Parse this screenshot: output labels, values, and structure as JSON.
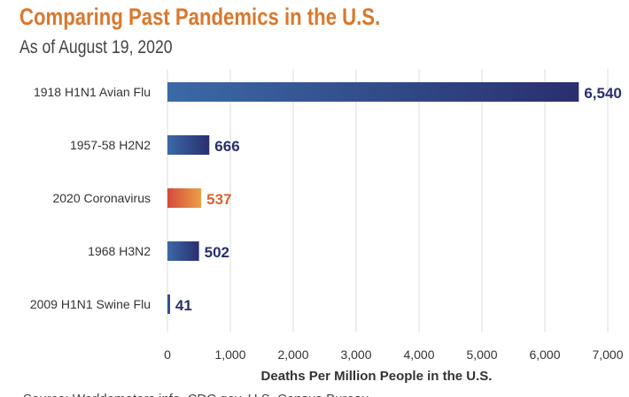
{
  "chart_data": {
    "type": "bar",
    "orientation": "horizontal",
    "title": "Comparing Past Pandemics in the U.S.",
    "subtitle": "As of August 19, 2020",
    "categories": [
      "1918 H1N1 Avian Flu",
      "1957-58 H2N2",
      "2020 Coronavirus",
      "1968 H3N2",
      "2009 H1N1 Swine Flu"
    ],
    "values": [
      6540,
      666,
      537,
      502,
      41
    ],
    "value_labels": [
      "6,540",
      "666",
      "537",
      "502",
      "41"
    ],
    "highlight_index": 2,
    "xlabel": "Deaths Per Million People in the U.S.",
    "xlim": [
      0,
      7000
    ],
    "ticks": [
      0,
      1000,
      2000,
      3000,
      4000,
      5000,
      6000,
      7000
    ],
    "tick_labels": [
      "0",
      "1,000",
      "2,000",
      "3,000",
      "4,000",
      "5,000",
      "6,000",
      "7,000"
    ],
    "grid": true,
    "source": "Source: Worldometers.info, CDC.gov, U.S. Census Bureau"
  },
  "colors": {
    "title": "#d9782d",
    "bar_start": "#3a6aa6",
    "bar_end": "#2a2f6e",
    "highlight_start": "#d44a3a",
    "highlight_end": "#eba048",
    "label": "#2a2f6e",
    "highlight_label": "#d9622d"
  }
}
